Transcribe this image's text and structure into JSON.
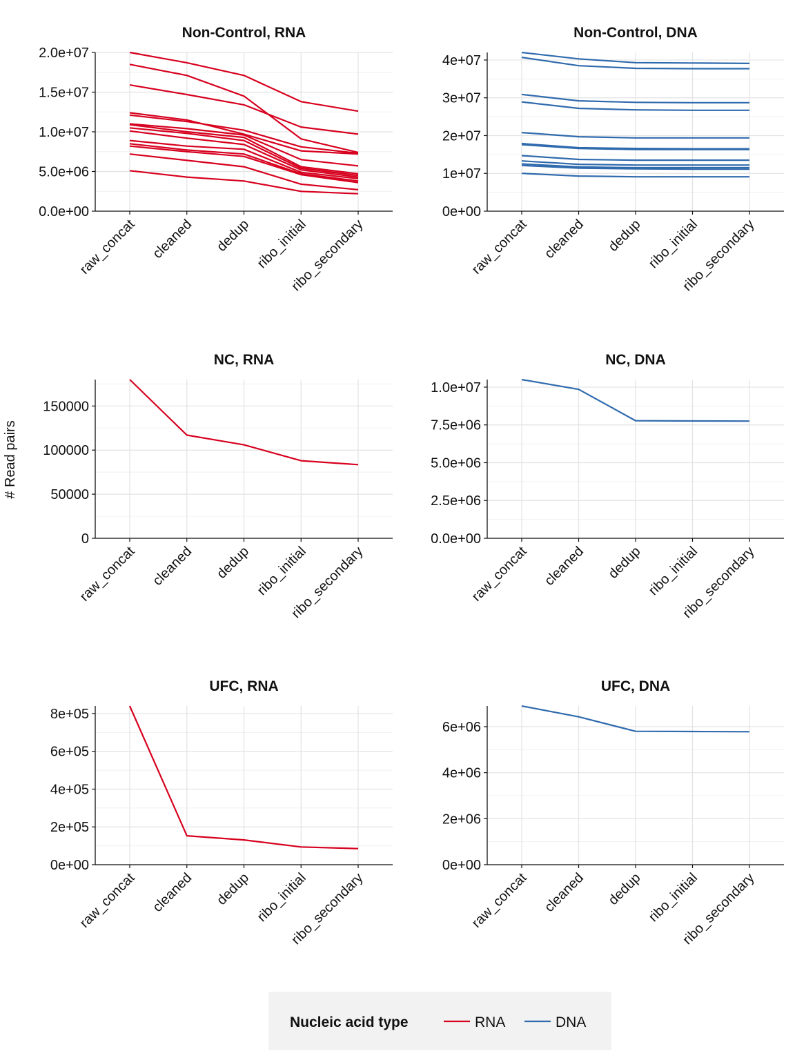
{
  "y_axis_label": "# Read pairs",
  "legend": {
    "title": "Nucleic acid type",
    "items": [
      {
        "label": "RNA",
        "color": "#d7001e"
      },
      {
        "label": "DNA",
        "color": "#2f6aad"
      }
    ]
  },
  "chart_data": [
    {
      "type": "line",
      "title": "Non-Control, RNA",
      "color": "#d7001e",
      "categories": [
        "raw_concat",
        "cleaned",
        "dedup",
        "ribo_initial",
        "ribo_secondary"
      ],
      "ylim": [
        0,
        20000000
      ],
      "ymax_visible": 20000000,
      "yticks": [
        0,
        5000000,
        10000000,
        15000000,
        20000000
      ],
      "yticklabels": [
        "0.0e+00",
        "5.0e+06",
        "1.0e+07",
        "1.5e+07",
        "2.0e+07"
      ],
      "series": [
        {
          "values": [
            20000000,
            18700000,
            17100000,
            13800000,
            12600000
          ]
        },
        {
          "values": [
            18500000,
            17100000,
            14500000,
            9100000,
            7400000
          ]
        },
        {
          "values": [
            15900000,
            14700000,
            13400000,
            10600000,
            9700000
          ]
        },
        {
          "values": [
            12400000,
            11500000,
            9700000,
            7600000,
            7200000
          ]
        },
        {
          "values": [
            12100000,
            11300000,
            10200000,
            8100000,
            7300000
          ]
        },
        {
          "values": [
            11000000,
            10400000,
            9600000,
            6500000,
            5700000
          ]
        },
        {
          "values": [
            10900000,
            10000000,
            9300000,
            5600000,
            4700000
          ]
        },
        {
          "values": [
            10500000,
            9800000,
            8900000,
            5400000,
            4500000
          ]
        },
        {
          "values": [
            10100000,
            9200000,
            8400000,
            5200000,
            4300000
          ]
        },
        {
          "values": [
            8900000,
            8200000,
            7800000,
            4900000,
            4100000
          ]
        },
        {
          "values": [
            8500000,
            7700000,
            7200000,
            4700000,
            3800000
          ]
        },
        {
          "values": [
            8200000,
            7500000,
            6900000,
            4600000,
            3600000
          ]
        },
        {
          "values": [
            7200000,
            6400000,
            5600000,
            3400000,
            2700000
          ]
        },
        {
          "values": [
            5100000,
            4300000,
            3800000,
            2500000,
            2200000
          ]
        }
      ]
    },
    {
      "type": "line",
      "title": "Non-Control, DNA",
      "color": "#2f6aad",
      "categories": [
        "raw_concat",
        "cleaned",
        "dedup",
        "ribo_initial",
        "ribo_secondary"
      ],
      "ylim": [
        0,
        42000000
      ],
      "ymax_visible": 42000000,
      "yticks": [
        0,
        10000000,
        20000000,
        30000000,
        40000000
      ],
      "yticklabels": [
        "0e+00",
        "1e+07",
        "2e+07",
        "3e+07",
        "4e+07"
      ],
      "series": [
        {
          "values": [
            42000000,
            40300000,
            39300000,
            39200000,
            39100000
          ]
        },
        {
          "values": [
            40700000,
            38500000,
            37800000,
            37700000,
            37700000
          ]
        },
        {
          "values": [
            30900000,
            29200000,
            28800000,
            28700000,
            28700000
          ]
        },
        {
          "values": [
            28900000,
            27200000,
            26800000,
            26700000,
            26700000
          ]
        },
        {
          "values": [
            20800000,
            19700000,
            19400000,
            19400000,
            19400000
          ]
        },
        {
          "values": [
            17900000,
            16800000,
            16600000,
            16500000,
            16500000
          ]
        },
        {
          "values": [
            17600000,
            16600000,
            16300000,
            16300000,
            16300000
          ]
        },
        {
          "values": [
            14700000,
            13700000,
            13500000,
            13500000,
            13500000
          ]
        },
        {
          "values": [
            13300000,
            12400000,
            12200000,
            12200000,
            12200000
          ]
        },
        {
          "values": [
            12500000,
            11700000,
            11500000,
            11500000,
            11500000
          ]
        },
        {
          "values": [
            12100000,
            11400000,
            11200000,
            11100000,
            11100000
          ]
        },
        {
          "values": [
            10000000,
            9300000,
            9100000,
            9100000,
            9100000
          ]
        }
      ]
    },
    {
      "type": "line",
      "title": "NC, RNA",
      "color": "#d7001e",
      "categories": [
        "raw_concat",
        "cleaned",
        "dedup",
        "ribo_initial",
        "ribo_secondary"
      ],
      "ylim": [
        0,
        180000
      ],
      "ymax_visible": 180000,
      "yticks": [
        0,
        50000,
        100000,
        150000
      ],
      "yticklabels": [
        "0",
        "50000",
        "100000",
        "150000"
      ],
      "series": [
        {
          "values": [
            180000,
            117000,
            106000,
            88000,
            83500
          ]
        }
      ]
    },
    {
      "type": "line",
      "title": "NC, DNA",
      "color": "#2f6aad",
      "categories": [
        "raw_concat",
        "cleaned",
        "dedup",
        "ribo_initial",
        "ribo_secondary"
      ],
      "ylim": [
        0,
        10500000
      ],
      "ymax_visible": 10500000,
      "yticks": [
        0,
        2500000,
        5000000,
        7500000,
        10000000
      ],
      "yticklabels": [
        "0.0e+00",
        "2.5e+06",
        "5.0e+06",
        "7.5e+06",
        "1.0e+07"
      ],
      "series": [
        {
          "values": [
            10500000,
            9850000,
            7780000,
            7760000,
            7750000
          ]
        }
      ]
    },
    {
      "type": "line",
      "title": "UFC, RNA",
      "color": "#d7001e",
      "categories": [
        "raw_concat",
        "cleaned",
        "dedup",
        "ribo_initial",
        "ribo_secondary"
      ],
      "ylim": [
        0,
        840000
      ],
      "ymax_visible": 840000,
      "yticks": [
        0,
        200000,
        400000,
        600000,
        800000
      ],
      "yticklabels": [
        "0e+00",
        "2e+05",
        "4e+05",
        "6e+05",
        "8e+05"
      ],
      "series": [
        {
          "values": [
            840000,
            153000,
            131000,
            94000,
            85000
          ]
        }
      ]
    },
    {
      "type": "line",
      "title": "UFC, DNA",
      "color": "#2f6aad",
      "categories": [
        "raw_concat",
        "cleaned",
        "dedup",
        "ribo_initial",
        "ribo_secondary"
      ],
      "ylim": [
        0,
        6900000
      ],
      "ymax_visible": 6900000,
      "yticks": [
        0,
        2000000,
        4000000,
        6000000
      ],
      "yticklabels": [
        "0e+00",
        "2e+06",
        "4e+06",
        "6e+06"
      ],
      "series": [
        {
          "values": [
            6900000,
            6430000,
            5800000,
            5790000,
            5780000
          ]
        }
      ]
    }
  ]
}
